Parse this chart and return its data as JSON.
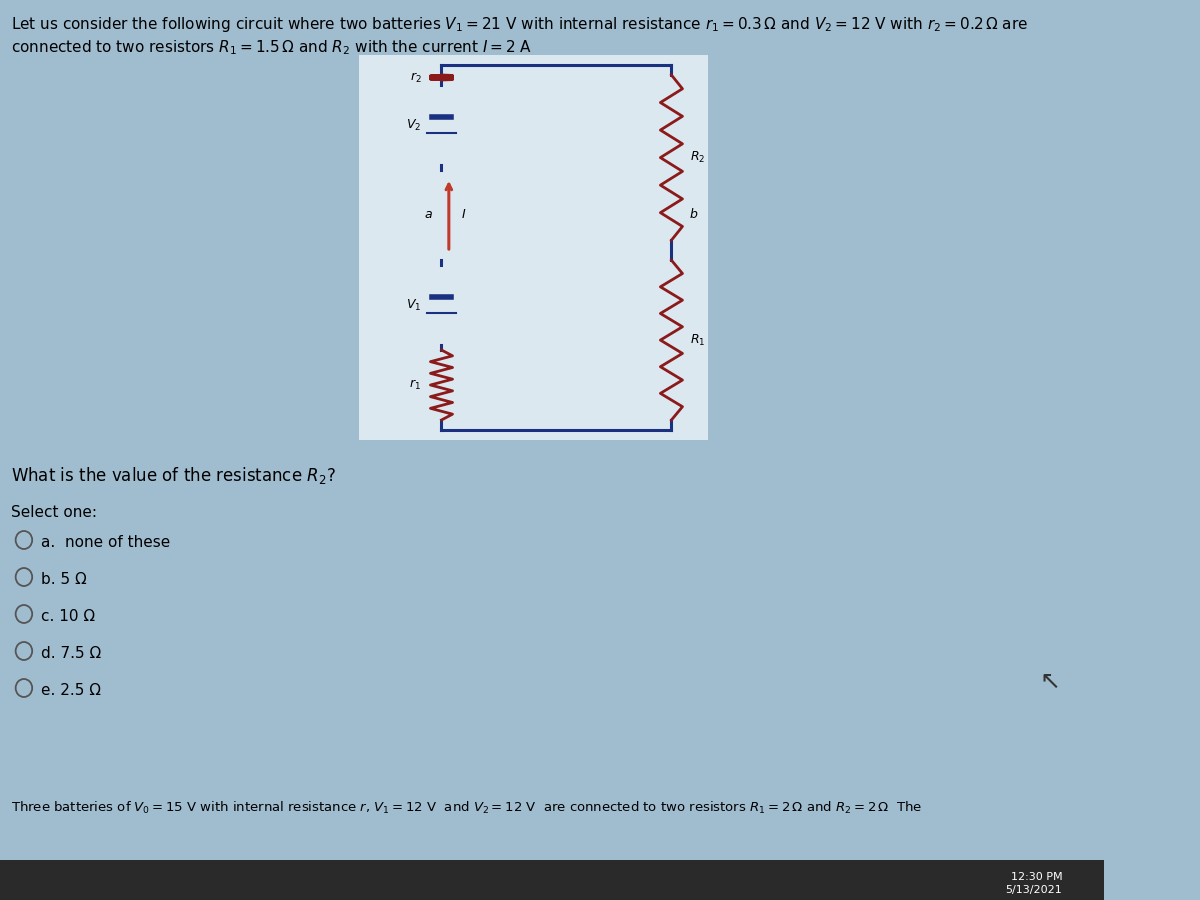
{
  "bg_color": "#a0bdd0",
  "circuit_bg": "#dce8f0",
  "title_line1": "Let us consider the following circuit where two batteries $V_1 = 21$ V with internal resistance $r_1 = 0.3\\,\\Omega$ and $V_2 = 12$ V with $r_2 = 0.2\\,\\Omega$ are",
  "title_line2": "connected to two resistors $R_1 = 1.5\\,\\Omega$ and $R_2$ with the current $I = 2$ A",
  "question": "What is the value of the resistance $R_2$?",
  "select": "Select one:",
  "options": [
    "a.  none of these",
    "b. 5 Ω",
    "c. 10 Ω",
    "d. 7.5 Ω",
    "e. 2.5 Ω"
  ],
  "footer": "Three batteries of $V_0 = 15$ V with internal resistance $r$, $V_1 = 12$ V  and $V_2 = 12$ V  are connected to two resistors $R_1 = 2\\,\\Omega$ and $R_2 = 2\\,\\Omega$  The",
  "time_text": "12:30 PM",
  "date_text": "5/13/2021",
  "wire_color": "#1a3080",
  "resistor_color": "#8b1a1a",
  "battery_color": "#1a3080",
  "current_color": "#c0392b",
  "taskbar_color": "#2a2a2a"
}
